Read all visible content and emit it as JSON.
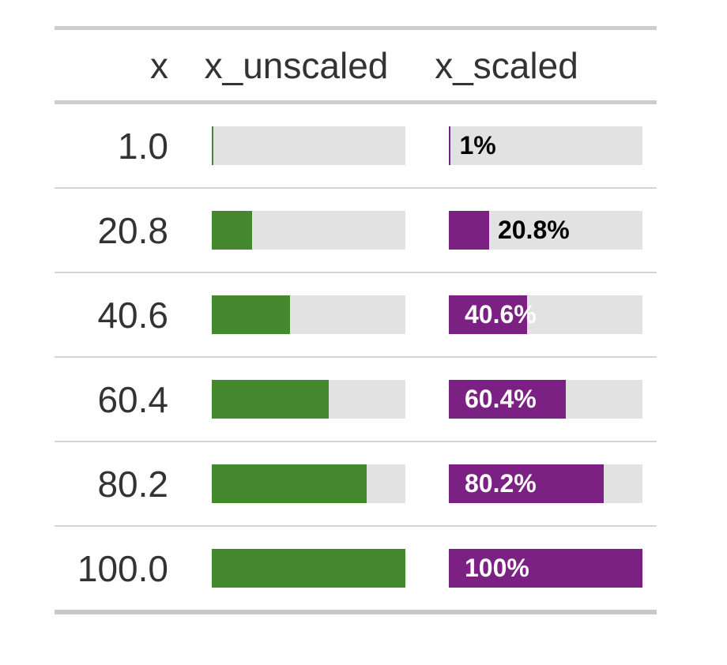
{
  "table": {
    "columns": [
      {
        "label": "x"
      },
      {
        "label": "x_unscaled"
      },
      {
        "label": "x_scaled"
      }
    ],
    "colors": {
      "unscaled_fill": "#44892D",
      "scaled_fill": "#7A2183",
      "track": "#E2E2E2",
      "text": "#333333",
      "label_inside": "#FFFFFF",
      "label_outside": "#000000"
    },
    "rows": [
      {
        "x": "1.0",
        "unscaled_pct": 1,
        "scaled_pct": 1,
        "scaled_label": "1%",
        "label_position": "outside"
      },
      {
        "x": "20.8",
        "unscaled_pct": 20.8,
        "scaled_pct": 20.8,
        "scaled_label": "20.8%",
        "label_position": "outside"
      },
      {
        "x": "40.6",
        "unscaled_pct": 40.6,
        "scaled_pct": 40.6,
        "scaled_label": "40.6%",
        "label_position": "inside"
      },
      {
        "x": "60.4",
        "unscaled_pct": 60.4,
        "scaled_pct": 60.4,
        "scaled_label": "60.4%",
        "label_position": "inside"
      },
      {
        "x": "80.2",
        "unscaled_pct": 80.2,
        "scaled_pct": 80.2,
        "scaled_label": "80.2%",
        "label_position": "inside"
      },
      {
        "x": "100.0",
        "unscaled_pct": 100,
        "scaled_pct": 100,
        "scaled_label": "100%",
        "label_position": "inside"
      }
    ]
  },
  "chart_data": {
    "type": "table",
    "title": "",
    "columns": [
      "x",
      "x_unscaled",
      "x_scaled"
    ],
    "series": [
      {
        "name": "x",
        "values": [
          1.0,
          20.8,
          40.6,
          60.4,
          80.2,
          100.0
        ]
      },
      {
        "name": "x_unscaled",
        "values": [
          1,
          20.8,
          40.6,
          60.4,
          80.2,
          100
        ],
        "render": "bar",
        "bar_range_pct": [
          0,
          100
        ],
        "fill": "#44892D",
        "labels": false
      },
      {
        "name": "x_scaled",
        "values": [
          1,
          20.8,
          40.6,
          60.4,
          80.2,
          100
        ],
        "render": "bar",
        "bar_range_pct": [
          0,
          100
        ],
        "fill": "#7A2183",
        "labels": [
          "1%",
          "20.8%",
          "40.6%",
          "60.4%",
          "80.2%",
          "100%"
        ]
      }
    ],
    "layout_hints": {
      "bar_background": "#E2E2E2",
      "label_color_inside": "#FFFFFF",
      "label_color_outside": "#000000"
    }
  }
}
